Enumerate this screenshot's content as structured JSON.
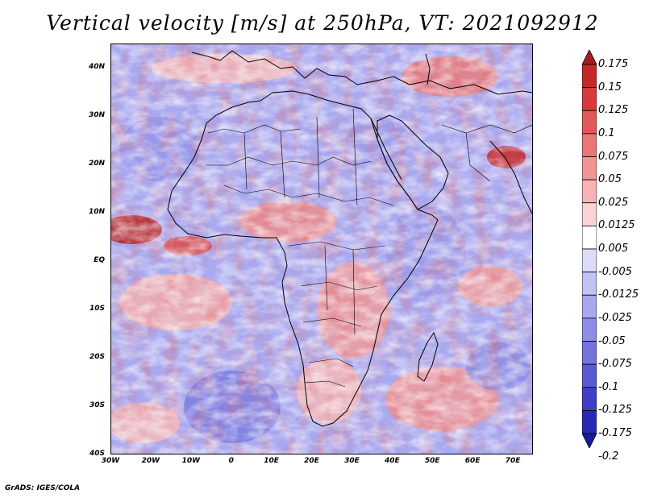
{
  "title": "Vertical velocity [m/s] at 250hPa, VT: 2021092912",
  "credit": "GrADS: IGES/COLA",
  "lat_axis": {
    "range": [
      -40,
      45
    ],
    "ticks": [
      {
        "value": 40,
        "label": "40N"
      },
      {
        "value": 30,
        "label": "30N"
      },
      {
        "value": 20,
        "label": "20N"
      },
      {
        "value": 10,
        "label": "10N"
      },
      {
        "value": 0,
        "label": "EQ"
      },
      {
        "value": -10,
        "label": "10S"
      },
      {
        "value": -20,
        "label": "20S"
      },
      {
        "value": -30,
        "label": "30S"
      },
      {
        "value": -40,
        "label": "40S"
      }
    ]
  },
  "lon_axis": {
    "range": [
      -30,
      75
    ],
    "ticks": [
      {
        "value": -30,
        "label": "30W"
      },
      {
        "value": -20,
        "label": "20W"
      },
      {
        "value": -10,
        "label": "10W"
      },
      {
        "value": 0,
        "label": "0"
      },
      {
        "value": 10,
        "label": "10E"
      },
      {
        "value": 20,
        "label": "20E"
      },
      {
        "value": 30,
        "label": "30E"
      },
      {
        "value": 40,
        "label": "40E"
      },
      {
        "value": 50,
        "label": "50E"
      },
      {
        "value": 60,
        "label": "60E"
      },
      {
        "value": 70,
        "label": "70E"
      }
    ]
  },
  "colorbar": {
    "levels": [
      "0.175",
      "0.15",
      "0.125",
      "0.1",
      "0.075",
      "0.05",
      "0.025",
      "0.0125",
      "0.005",
      "-0.005",
      "-0.0125",
      "-0.025",
      "-0.05",
      "-0.075",
      "-0.1",
      "-0.125",
      "-0.175",
      "-0.2"
    ],
    "colors": [
      "#a51c1c",
      "#c62828",
      "#d83a3a",
      "#e25858",
      "#ea7676",
      "#f19494",
      "#f6b4b4",
      "#fad4d4",
      "#ffffff",
      "#dcdcfa",
      "#c2c2f4",
      "#a8a8ee",
      "#8e8ee6",
      "#7474dc",
      "#5a5ad2",
      "#4040c6",
      "#2828b4",
      "#1a1aa0"
    ]
  },
  "colors": {
    "land_line": "#000000",
    "background": "#ffffff"
  }
}
